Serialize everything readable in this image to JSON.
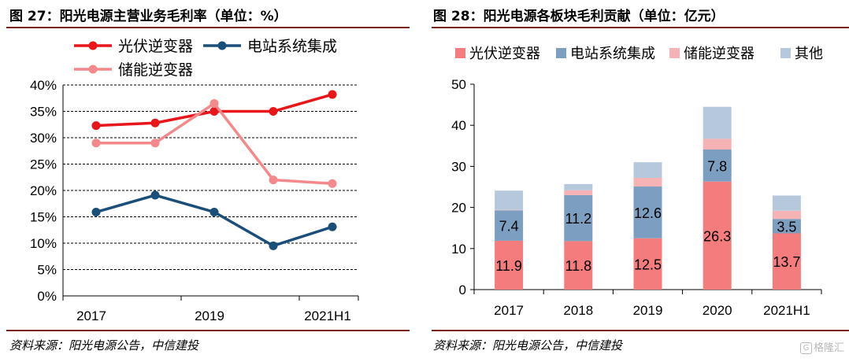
{
  "left": {
    "title": "图 27：阳光电源主营业务毛利率（单位：%）",
    "source": "资料来源：阳光电源公告，中信建投",
    "chart_data": {
      "type": "line",
      "x": [
        "2017",
        "",
        "2019",
        "",
        "2021H1"
      ],
      "xtick_labels": [
        "2017",
        "2019",
        "2021H1"
      ],
      "yticks": [
        "0%",
        "5%",
        "10%",
        "15%",
        "20%",
        "25%",
        "30%",
        "35%",
        "40%"
      ],
      "ylim": [
        0,
        40
      ],
      "grid": true,
      "legend_position": "top",
      "series": [
        {
          "name": "光伏逆变器",
          "values": [
            32.3,
            32.8,
            35,
            35,
            38.2
          ],
          "color": "#e8151b"
        },
        {
          "name": "电站系统集成",
          "values": [
            15.9,
            19.1,
            15.9,
            9.5,
            13.1
          ],
          "color": "#1b4f7a"
        },
        {
          "name": "储能逆变器",
          "values": [
            29,
            29,
            36.5,
            22,
            21.3
          ],
          "color": "#f4898b"
        }
      ]
    }
  },
  "right": {
    "title": "图 28：阳光电源各板块毛利贡献（单位：亿元）",
    "source": "资料来源：阳光电源公告，中信建投",
    "chart_data": {
      "type": "bar",
      "stacked": true,
      "categories": [
        "2017",
        "2018",
        "2019",
        "2020",
        "2021H1"
      ],
      "yticks": [
        "0",
        "10",
        "20",
        "30",
        "40",
        "50"
      ],
      "ylim": [
        0,
        50
      ],
      "grid": false,
      "legend_position": "top",
      "series": [
        {
          "name": "光伏逆变器",
          "values": [
            11.9,
            11.8,
            12.5,
            26.3,
            13.7
          ],
          "labels": [
            "11.9",
            "11.8",
            "12.5",
            "26.3",
            "13.7"
          ],
          "color": "#f47c7c"
        },
        {
          "name": "电站系统集成",
          "values": [
            7.4,
            11.2,
            12.6,
            7.8,
            3.5
          ],
          "labels": [
            "7.4",
            "11.2",
            "12.6",
            "7.8",
            "3.5"
          ],
          "color": "#7c9ec0"
        },
        {
          "name": "储能逆变器",
          "values": [
            0.1,
            1.2,
            2.1,
            2.6,
            2.0
          ],
          "color": "#f6b3b5"
        },
        {
          "name": "其他",
          "values": [
            4.7,
            1.5,
            3.8,
            7.8,
            3.7
          ],
          "color": "#b6c9dc"
        }
      ]
    }
  },
  "watermark": {
    "icon": "G",
    "text": "格隆汇"
  }
}
